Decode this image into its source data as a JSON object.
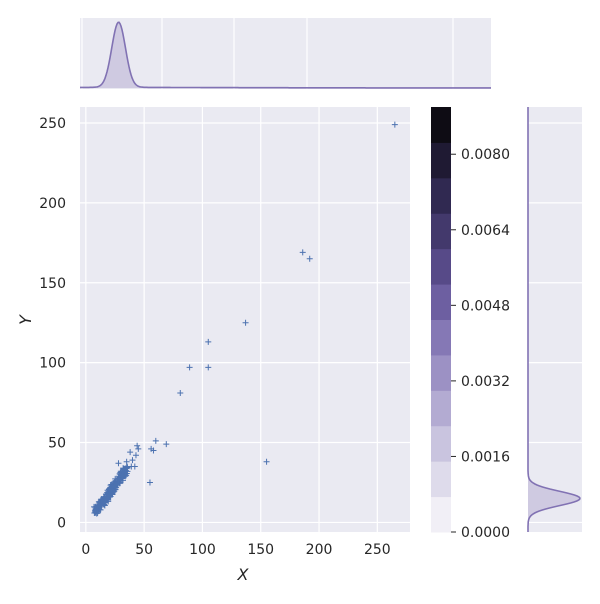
{
  "chart_data": {
    "type": "scatter",
    "title": "",
    "xlabel": "X",
    "ylabel": "Y",
    "xlim": [
      -5,
      278
    ],
    "ylim": [
      -6,
      260
    ],
    "xticks": [
      0,
      50,
      100,
      150,
      200,
      250
    ],
    "yticks": [
      0,
      50,
      100,
      150,
      200,
      250
    ],
    "grid": true,
    "marker": "+",
    "colors": {
      "background": "#eaeaf2",
      "grid": "#ffffff",
      "points": "#4c72b0",
      "kde_line": "#8172b3",
      "kde_fill": "#c8c2dc"
    },
    "scatter_points": [
      [
        265,
        249
      ],
      [
        186,
        169
      ],
      [
        192,
        165
      ],
      [
        137,
        125
      ],
      [
        105,
        113
      ],
      [
        89,
        97
      ],
      [
        105,
        97
      ],
      [
        81,
        81
      ],
      [
        155,
        38
      ],
      [
        60,
        51
      ],
      [
        69,
        49
      ],
      [
        56,
        46
      ],
      [
        58,
        45
      ],
      [
        45,
        46
      ],
      [
        44,
        48
      ],
      [
        43,
        42
      ],
      [
        38,
        44
      ],
      [
        40,
        39
      ],
      [
        35,
        38
      ],
      [
        42,
        35
      ],
      [
        39,
        35
      ],
      [
        55,
        25
      ],
      [
        28,
        37
      ],
      [
        32,
        34
      ],
      [
        30,
        32
      ]
    ],
    "cluster": {
      "center": [
        21,
        19
      ],
      "n_points": 230,
      "x_range": [
        7,
        36
      ],
      "y_range": [
        5,
        35
      ],
      "slope": 1.0,
      "spread": 2.6
    },
    "marginal_x_kde": {
      "peak_x": 23,
      "width": 5.5,
      "tail_length": 250
    },
    "marginal_y_kde": {
      "peak_y": 15,
      "width": 4.5
    },
    "colorbar": {
      "range": [
        0,
        0.009
      ],
      "ticks": [
        0.0,
        0.0016,
        0.0032,
        0.0048,
        0.0064,
        0.008
      ],
      "tick_labels": [
        "0.0000",
        "0.0016",
        "0.0032",
        "0.0048",
        "0.0064",
        "0.0080"
      ],
      "levels": 11,
      "colors": [
        "#f1eff6",
        "#dedbeb",
        "#c9c4df",
        "#b3abd2",
        "#9c91c4",
        "#8578b5",
        "#6d5fa1",
        "#574a88",
        "#43396c",
        "#302951",
        "#1f1a33",
        "#0e0c14"
      ]
    }
  }
}
